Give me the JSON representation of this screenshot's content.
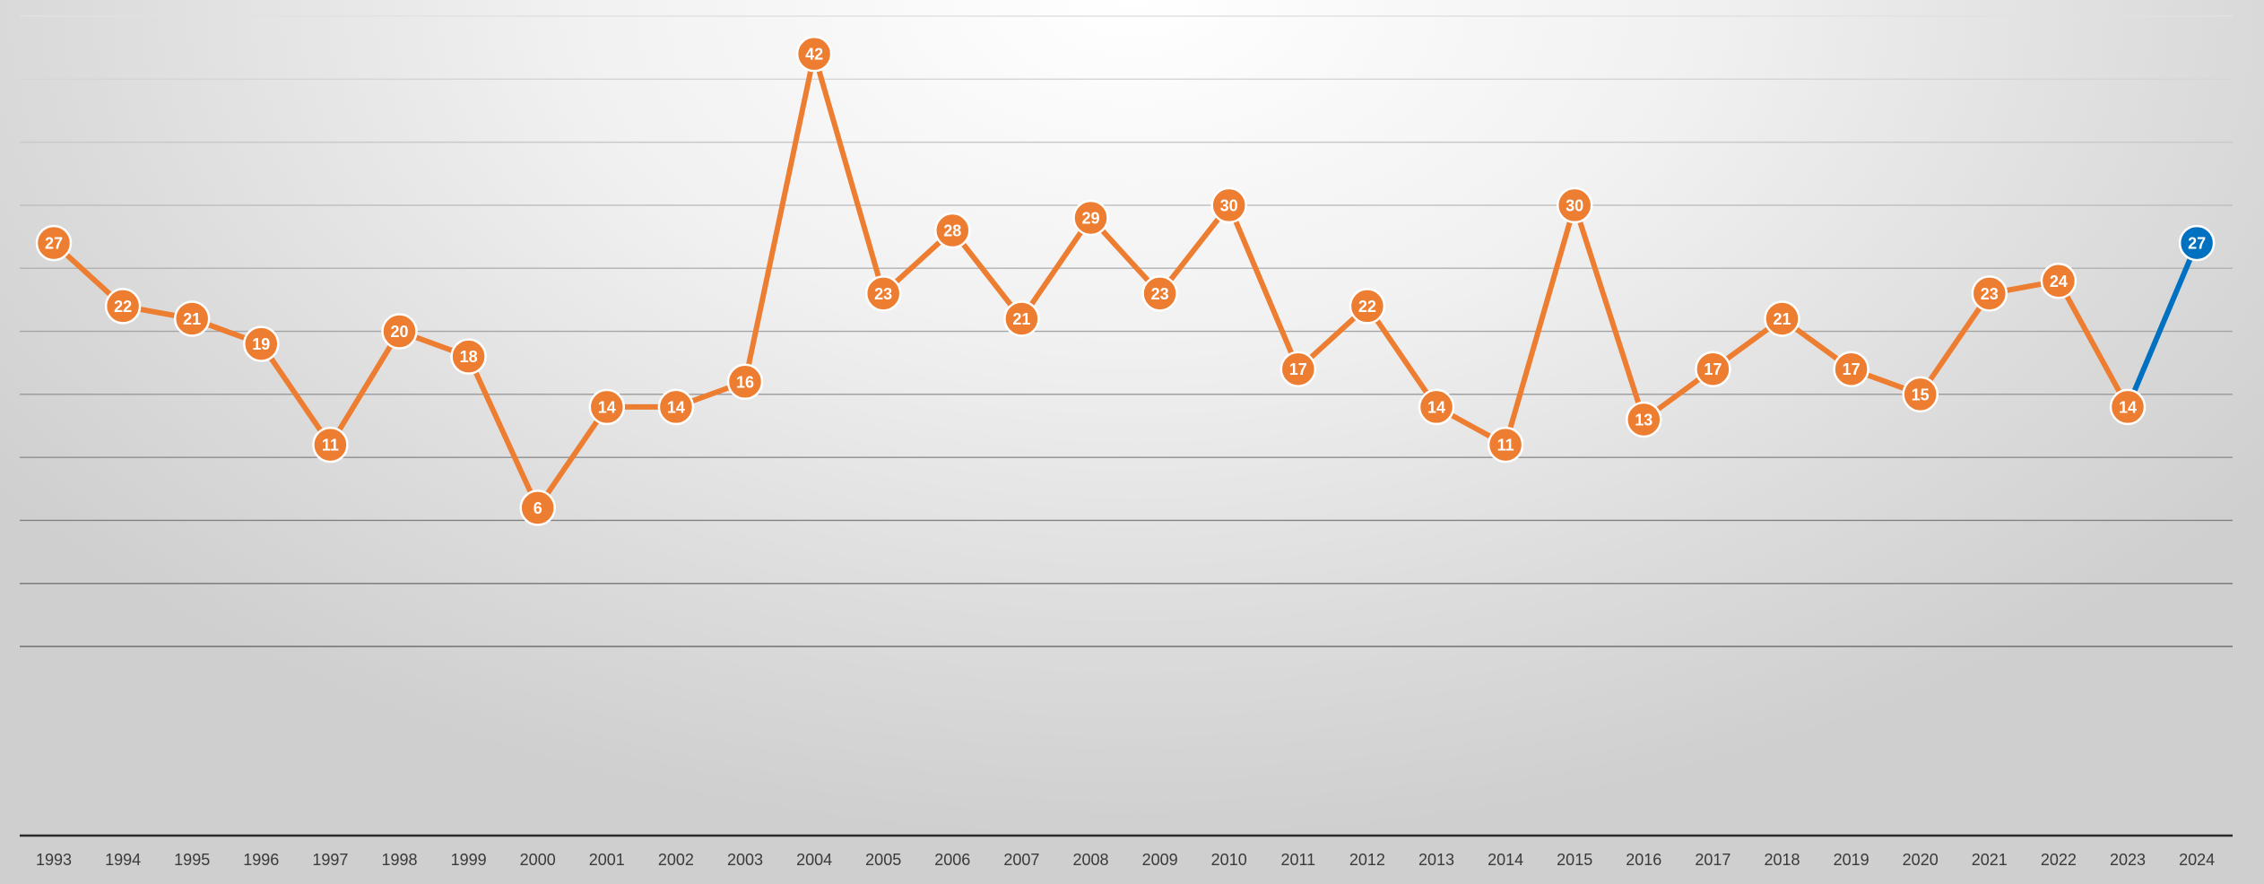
{
  "chart_data": {
    "type": "line",
    "title": "",
    "xlabel": "",
    "ylabel": "",
    "grid": true,
    "legend": "none",
    "ylim": [
      -20,
      45
    ],
    "categories": [
      "1993",
      "1994",
      "1995",
      "1996",
      "1997",
      "1998",
      "1999",
      "2000",
      "2001",
      "2002",
      "2003",
      "2004",
      "2005",
      "2006",
      "2007",
      "2008",
      "2009",
      "2010",
      "2011",
      "2012",
      "2013",
      "2014",
      "2015",
      "2016",
      "2017",
      "2018",
      "2019",
      "2020",
      "2021",
      "2022",
      "2023",
      "2024"
    ],
    "series": [
      {
        "values": [
          27,
          22,
          21,
          19,
          11,
          20,
          18,
          6,
          14,
          14,
          16,
          42,
          23,
          28,
          21,
          29,
          23,
          30,
          17,
          22,
          14,
          11,
          30,
          13,
          17,
          21,
          17,
          15,
          23,
          24,
          14,
          27
        ],
        "color": "#ED7D31",
        "highlight_last_color": "#0070C0",
        "data_labels": true
      }
    ],
    "colors": {
      "line": "#ED7D31",
      "highlight": "#0070C0",
      "label_text": "#ffffff"
    }
  }
}
